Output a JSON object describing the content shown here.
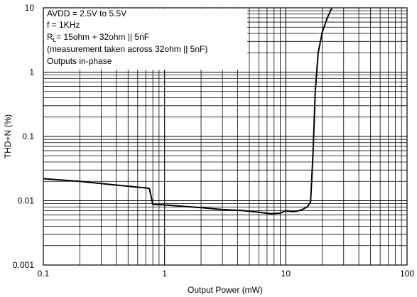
{
  "chart_data": {
    "type": "line",
    "xscale": "log",
    "yscale": "log",
    "xlim": [
      0.1,
      100
    ],
    "ylim": [
      0.001,
      10
    ],
    "xlabel": "Output Power (mW)",
    "ylabel": "THD+N (%)",
    "x_ticks": [
      "0.1",
      "1",
      "10",
      "100"
    ],
    "y_ticks": [
      "10",
      "1",
      "0.1",
      "0.01",
      "0.001"
    ],
    "grid": true,
    "legend": "none",
    "annotation_lines": [
      "AVDD = 2.5V to 5.5V",
      "f = 1KHz",
      "(measurement taken across 32ohm || 5nF)",
      "Outputs in-phase"
    ],
    "annotation_rl": {
      "prefix": "R",
      "subscript": "L",
      "suffix": "= 15ohm + 32ohm || 5nF"
    },
    "series": [
      {
        "color": "#000000",
        "x": [
          0.1,
          0.2,
          0.4,
          0.7,
          0.75,
          0.8,
          1.0,
          2.0,
          3.0,
          4.5,
          6.0,
          7.5,
          9.0,
          10.0,
          11.0,
          12.0,
          13.5,
          15.0,
          16.0,
          16.8,
          17.5,
          18.5,
          20.0,
          22.0,
          24.0
        ],
        "y": [
          0.022,
          0.02,
          0.0175,
          0.0158,
          0.0155,
          0.0088,
          0.0086,
          0.0078,
          0.0073,
          0.007,
          0.0066,
          0.0063,
          0.0064,
          0.007,
          0.0068,
          0.0068,
          0.0072,
          0.008,
          0.0095,
          0.06,
          0.5,
          2.0,
          4.2,
          7.0,
          10.0
        ]
      }
    ]
  }
}
